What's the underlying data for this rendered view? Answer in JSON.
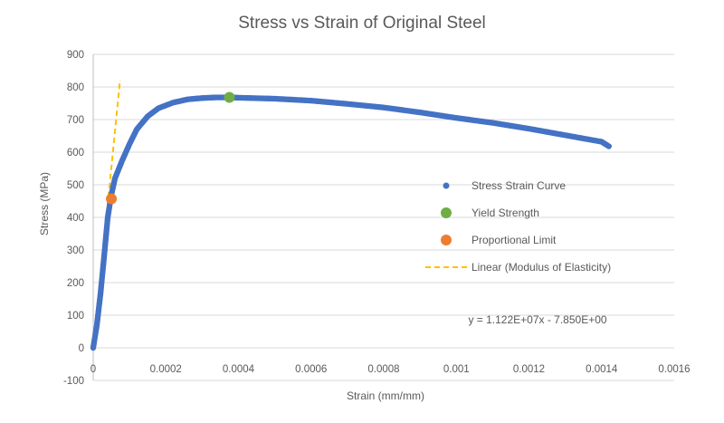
{
  "chart_data": {
    "type": "scatter",
    "title": "Stress vs Strain of Original Steel",
    "xlabel": "Strain (mm/mm)",
    "ylabel": "Stress (MPa)",
    "xlim": [
      0,
      0.0016
    ],
    "ylim": [
      -100,
      900
    ],
    "x_ticks": [
      "0",
      "0.0002",
      "0.0004",
      "0.0006",
      "0.0008",
      "0.001",
      "0.0012",
      "0.0014",
      "0.0016"
    ],
    "y_ticks": [
      "-100",
      "0",
      "100",
      "200",
      "300",
      "400",
      "500",
      "600",
      "700",
      "800",
      "900"
    ],
    "grid": "horizontal",
    "legend_position": "right",
    "series": [
      {
        "name": "Stress Strain Curve",
        "kind": "scatter",
        "color": "#4472C4",
        "points": [
          [
            0,
            0
          ],
          [
            1e-05,
            70
          ],
          [
            2e-05,
            165
          ],
          [
            3e-05,
            280
          ],
          [
            4e-05,
            400
          ],
          [
            5e-05,
            470
          ],
          [
            6e-05,
            520
          ],
          [
            8e-05,
            575
          ],
          [
            0.0001,
            625
          ],
          [
            0.00012,
            670
          ],
          [
            0.00015,
            710
          ],
          [
            0.00018,
            735
          ],
          [
            0.00022,
            752
          ],
          [
            0.00026,
            762
          ],
          [
            0.0003,
            766
          ],
          [
            0.00034,
            768
          ],
          [
            0.000375,
            768
          ],
          [
            0.0004,
            767
          ],
          [
            0.0005,
            764
          ],
          [
            0.0006,
            758
          ],
          [
            0.0007,
            748
          ],
          [
            0.0008,
            737
          ],
          [
            0.0009,
            722
          ],
          [
            0.001,
            705
          ],
          [
            0.0011,
            690
          ],
          [
            0.0012,
            672
          ],
          [
            0.0013,
            652
          ],
          [
            0.0014,
            632
          ],
          [
            0.00142,
            618
          ]
        ]
      },
      {
        "name": "Yield Strength",
        "kind": "marker",
        "color": "#70AD47",
        "points": [
          [
            0.000375,
            768
          ]
        ]
      },
      {
        "name": "Proportional Limit",
        "kind": "marker",
        "color": "#ED7D31",
        "points": [
          [
            5e-05,
            457
          ]
        ]
      },
      {
        "name": "Linear (Modulus of Elasticity)",
        "kind": "trendline",
        "color": "#FFC000",
        "slope": 11220000,
        "intercept": -7.85,
        "x_range": [
          0,
          7.4e-05
        ]
      }
    ],
    "annotations": [
      {
        "text": "y = 1.122E+07x - 7.850E+00"
      }
    ]
  }
}
